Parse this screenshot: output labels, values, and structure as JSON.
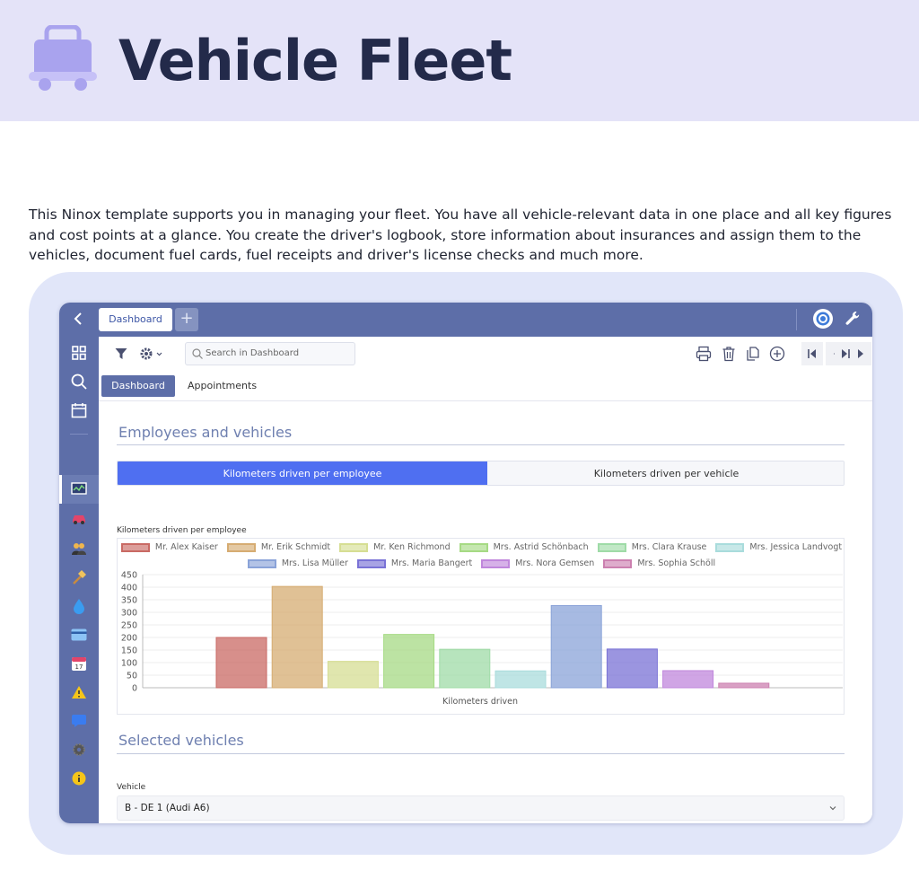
{
  "hero": {
    "title": "Vehicle Fleet"
  },
  "intro": "This Ninox template supports you in managing your fleet. You have all vehicle-relevant data in one place and all key figures and cost points at a glance. You create the driver's logbook, store information about insurances and assign them to the vehicles, document fuel cards, fuel receipts and driver's license checks and much more.",
  "app": {
    "tabs": {
      "main": "Dashboard",
      "add": "+"
    },
    "search_placeholder": "Search in Dashboard",
    "subtabs": [
      "Dashboard",
      "Appointments"
    ],
    "sections": {
      "employees": "Employees and vehicles",
      "selected": "Selected vehicles"
    },
    "segments": [
      "Kilometers driven per employee",
      "Kilometers driven per vehicle"
    ],
    "vehicle": {
      "label": "Vehicle",
      "value": "B - DE 1 (Audi A6)"
    },
    "icons": [
      "back-icon",
      "target-icon",
      "wrench-icon",
      "filter-icon",
      "gear-icon",
      "search-icon",
      "print-icon",
      "trash-icon",
      "copy-icon",
      "plus-circle-icon",
      "first-icon",
      "prev-icon",
      "next-icon",
      "last-icon"
    ]
  },
  "chart_data": {
    "type": "bar",
    "title": "Kilometers driven per employee",
    "xlabel": "Kilometers driven",
    "ylabel": "",
    "ylim": [
      0,
      450
    ],
    "yticks": [
      0,
      50,
      100,
      150,
      200,
      250,
      300,
      350,
      400,
      450
    ],
    "legend_position": "top",
    "grid": true,
    "series": [
      {
        "name": "Mr. Alex Kaiser",
        "value": 200,
        "color": "#c96a64"
      },
      {
        "name": "Mr. Erik Schmidt",
        "value": 403,
        "color": "#d6ac72"
      },
      {
        "name": "Mr. Ken Richmond",
        "value": 105,
        "color": "#d6de93"
      },
      {
        "name": "Mrs. Astrid Schönbach",
        "value": 212,
        "color": "#a6da84"
      },
      {
        "name": "Mrs. Clara Krause",
        "value": 153,
        "color": "#9fdba7"
      },
      {
        "name": "Mrs. Jessica Landvogt",
        "value": 67,
        "color": "#a9dcdc"
      },
      {
        "name": "Mrs. Lisa Müller",
        "value": 327,
        "color": "#8aa3d8"
      },
      {
        "name": "Mrs. Maria Bangert",
        "value": 154,
        "color": "#7a72d6"
      },
      {
        "name": "Mrs. Nora Gemsen",
        "value": 68,
        "color": "#c087dc"
      },
      {
        "name": "Mrs. Sophia Schöll",
        "value": 18,
        "color": "#cc80b0"
      }
    ]
  }
}
